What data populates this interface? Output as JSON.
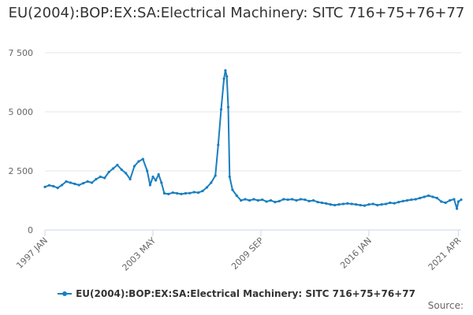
{
  "chart_data": {
    "type": "line",
    "title": "EU(2004):BOP:EX:SA:Electrical Machinery: SITC 716+75+76+77",
    "xlabel": "",
    "ylabel": "",
    "ylim": [
      0,
      7500
    ],
    "y_ticks": [
      "0",
      "2 500",
      "5 000",
      "7 500"
    ],
    "y_tick_values": [
      0,
      2500,
      5000,
      7500
    ],
    "x_tick_labels": [
      "1997 JAN",
      "2003 MAY",
      "2009 SEP",
      "2016 JAN",
      "2021 APR"
    ],
    "x_tick_dates": [
      "1997-01",
      "2003-05",
      "2009-09",
      "2016-01",
      "2021-04"
    ],
    "x_range": [
      "1997-01",
      "2021-06"
    ],
    "grid": true,
    "legend_position": "bottom",
    "series": [
      {
        "name": "EU(2004):BOP:EX:SA:Electrical Machinery: SITC 716+75+76+77",
        "color": "#1a7fbf",
        "points": [
          [
            "1997-01",
            1820
          ],
          [
            "1997-04",
            1890
          ],
          [
            "1997-07",
            1850
          ],
          [
            "1997-10",
            1780
          ],
          [
            "1998-01",
            1900
          ],
          [
            "1998-04",
            2050
          ],
          [
            "1998-07",
            2000
          ],
          [
            "1998-10",
            1950
          ],
          [
            "1999-01",
            1900
          ],
          [
            "1999-04",
            1980
          ],
          [
            "1999-07",
            2050
          ],
          [
            "1999-10",
            2000
          ],
          [
            "2000-01",
            2150
          ],
          [
            "2000-04",
            2250
          ],
          [
            "2000-07",
            2200
          ],
          [
            "2000-10",
            2450
          ],
          [
            "2001-01",
            2600
          ],
          [
            "2001-04",
            2750
          ],
          [
            "2001-07",
            2550
          ],
          [
            "2001-10",
            2400
          ],
          [
            "2002-01",
            2150
          ],
          [
            "2002-04",
            2700
          ],
          [
            "2002-07",
            2900
          ],
          [
            "2002-10",
            3000
          ],
          [
            "2003-01",
            2500
          ],
          [
            "2003-03",
            1900
          ],
          [
            "2003-05",
            2250
          ],
          [
            "2003-07",
            2100
          ],
          [
            "2003-09",
            2350
          ],
          [
            "2003-11",
            2000
          ],
          [
            "2004-01",
            1550
          ],
          [
            "2004-04",
            1520
          ],
          [
            "2004-07",
            1580
          ],
          [
            "2004-10",
            1550
          ],
          [
            "2005-01",
            1520
          ],
          [
            "2005-04",
            1550
          ],
          [
            "2005-07",
            1560
          ],
          [
            "2005-10",
            1600
          ],
          [
            "2006-01",
            1580
          ],
          [
            "2006-04",
            1650
          ],
          [
            "2006-07",
            1800
          ],
          [
            "2006-10",
            2000
          ],
          [
            "2007-01",
            2300
          ],
          [
            "2007-03",
            3600
          ],
          [
            "2007-05",
            5100
          ],
          [
            "2007-07",
            6400
          ],
          [
            "2007-08",
            6750
          ],
          [
            "2007-09",
            6500
          ],
          [
            "2007-10",
            5200
          ],
          [
            "2007-11",
            2250
          ],
          [
            "2008-01",
            1700
          ],
          [
            "2008-04",
            1450
          ],
          [
            "2008-07",
            1250
          ],
          [
            "2008-10",
            1300
          ],
          [
            "2009-01",
            1250
          ],
          [
            "2009-04",
            1300
          ],
          [
            "2009-07",
            1250
          ],
          [
            "2009-10",
            1280
          ],
          [
            "2010-01",
            1200
          ],
          [
            "2010-04",
            1250
          ],
          [
            "2010-07",
            1180
          ],
          [
            "2010-10",
            1220
          ],
          [
            "2011-01",
            1300
          ],
          [
            "2011-04",
            1280
          ],
          [
            "2011-07",
            1300
          ],
          [
            "2011-10",
            1250
          ],
          [
            "2012-01",
            1300
          ],
          [
            "2012-04",
            1280
          ],
          [
            "2012-07",
            1220
          ],
          [
            "2012-10",
            1250
          ],
          [
            "2013-01",
            1180
          ],
          [
            "2013-04",
            1150
          ],
          [
            "2013-07",
            1120
          ],
          [
            "2013-10",
            1080
          ],
          [
            "2014-01",
            1050
          ],
          [
            "2014-04",
            1080
          ],
          [
            "2014-07",
            1100
          ],
          [
            "2014-10",
            1120
          ],
          [
            "2015-01",
            1100
          ],
          [
            "2015-04",
            1080
          ],
          [
            "2015-07",
            1050
          ],
          [
            "2015-10",
            1030
          ],
          [
            "2016-01",
            1080
          ],
          [
            "2016-04",
            1100
          ],
          [
            "2016-07",
            1050
          ],
          [
            "2016-10",
            1080
          ],
          [
            "2017-01",
            1100
          ],
          [
            "2017-04",
            1150
          ],
          [
            "2017-07",
            1130
          ],
          [
            "2017-10",
            1180
          ],
          [
            "2018-01",
            1220
          ],
          [
            "2018-04",
            1250
          ],
          [
            "2018-07",
            1280
          ],
          [
            "2018-10",
            1300
          ],
          [
            "2019-01",
            1350
          ],
          [
            "2019-04",
            1400
          ],
          [
            "2019-07",
            1450
          ],
          [
            "2019-10",
            1400
          ],
          [
            "2020-01",
            1350
          ],
          [
            "2020-04",
            1200
          ],
          [
            "2020-07",
            1150
          ],
          [
            "2020-10",
            1250
          ],
          [
            "2021-01",
            1300
          ],
          [
            "2021-03",
            900
          ],
          [
            "2021-04",
            1200
          ],
          [
            "2021-06",
            1280
          ]
        ]
      }
    ]
  },
  "source_label": "Source:"
}
